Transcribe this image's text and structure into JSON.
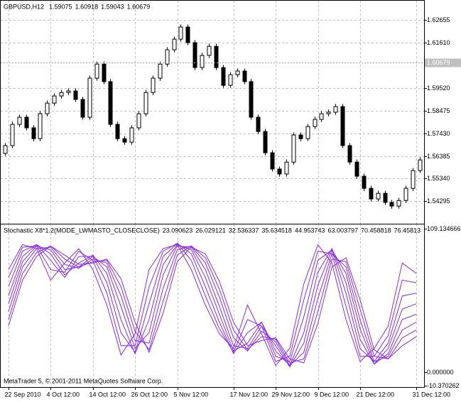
{
  "chart_data": [
    {
      "type": "candlestick",
      "symbol": "GBPUSD,H12",
      "header_values": [
        1.59075,
        1.60918,
        1.59043,
        1.60679
      ],
      "ylim": [
        1.5329,
        1.6351
      ],
      "yticks": [
        1.62655,
        {
          "value": 1.6161,
          "label": "1.61610"
        },
        {
          "value": 1.5952,
          "label": "1.59520"
        },
        1.58475,
        {
          "value": 1.5743,
          "label": "1.57430"
        },
        1.56385,
        {
          "value": 1.5534,
          "label": "1.55340"
        },
        1.54295
      ],
      "grid": true,
      "color": "#000000",
      "open": [
        1.565,
        1.5686,
        1.5784,
        1.5817,
        1.5768,
        1.5718,
        1.5833,
        1.5882,
        1.5915,
        1.5931,
        1.5938,
        1.5899,
        1.5817,
        1.5997,
        1.6062,
        1.5981,
        1.5784,
        1.5718,
        1.5702,
        1.5768,
        1.5833,
        1.5931,
        1.5997,
        1.6062,
        1.6128,
        1.6177,
        1.6233,
        1.6161,
        1.6046,
        1.6102,
        1.6144,
        1.6046,
        1.5964,
        1.6013,
        1.603,
        1.5981,
        1.5817,
        1.5751,
        1.5653,
        1.5578,
        1.5555,
        1.561,
        1.5735,
        1.5718,
        1.5774,
        1.5807,
        1.5833,
        1.584,
        1.5866,
        1.5686,
        1.561,
        1.5545,
        1.5489,
        1.544,
        1.5466,
        1.5424,
        1.5407,
        1.5433,
        1.5489,
        1.5571
      ],
      "high": [
        1.5698,
        1.5796,
        1.5829,
        1.5829,
        1.578,
        1.5845,
        1.5894,
        1.5927,
        1.5943,
        1.595,
        1.595,
        1.5911,
        1.6009,
        1.6074,
        1.6074,
        1.5993,
        1.5796,
        1.573,
        1.578,
        1.5845,
        1.5943,
        1.6009,
        1.6074,
        1.614,
        1.6189,
        1.6245,
        1.6245,
        1.6173,
        1.6114,
        1.6156,
        1.6156,
        1.6058,
        1.6025,
        1.6042,
        1.6042,
        1.5993,
        1.5829,
        1.5763,
        1.5665,
        1.559,
        1.5622,
        1.5747,
        1.5747,
        1.5786,
        1.5819,
        1.5845,
        1.5852,
        1.5878,
        1.5878,
        1.5698,
        1.5622,
        1.5557,
        1.5501,
        1.5478,
        1.5478,
        1.5436,
        1.5445,
        1.5501,
        1.5583,
        1.5632
      ],
      "low": [
        1.5638,
        1.5674,
        1.5772,
        1.5756,
        1.5706,
        1.5706,
        1.5821,
        1.587,
        1.5903,
        1.5919,
        1.5887,
        1.5805,
        1.5805,
        1.5985,
        1.5969,
        1.5772,
        1.5706,
        1.569,
        1.569,
        1.5756,
        1.5821,
        1.5919,
        1.5985,
        1.605,
        1.6116,
        1.6165,
        1.6149,
        1.6034,
        1.6034,
        1.609,
        1.6034,
        1.5952,
        1.5952,
        1.6001,
        1.5969,
        1.5805,
        1.5739,
        1.5641,
        1.5566,
        1.5543,
        1.5543,
        1.5598,
        1.5706,
        1.5706,
        1.5762,
        1.5795,
        1.5821,
        1.5828,
        1.5674,
        1.5598,
        1.5533,
        1.5477,
        1.5428,
        1.5428,
        1.5412,
        1.5395,
        1.5395,
        1.5421,
        1.5477,
        1.5559
      ],
      "close": [
        1.5686,
        1.5784,
        1.5817,
        1.5768,
        1.5718,
        1.5833,
        1.5882,
        1.5915,
        1.5931,
        1.5938,
        1.5899,
        1.5817,
        1.5997,
        1.6062,
        1.5981,
        1.5784,
        1.5718,
        1.5702,
        1.5768,
        1.5833,
        1.5931,
        1.5997,
        1.6062,
        1.6128,
        1.6177,
        1.6233,
        1.6161,
        1.6046,
        1.6102,
        1.6144,
        1.6046,
        1.5964,
        1.6013,
        1.603,
        1.5981,
        1.5817,
        1.5751,
        1.5653,
        1.5578,
        1.5555,
        1.561,
        1.5735,
        1.5718,
        1.5774,
        1.5807,
        1.5833,
        1.584,
        1.5866,
        1.5686,
        1.561,
        1.5545,
        1.5489,
        1.544,
        1.5466,
        1.5424,
        1.5407,
        1.5433,
        1.5489,
        1.5571,
        1.562
      ]
    },
    {
      "type": "line",
      "title": "Stochastic X8*1.2(MODE_LWMASTO_CLOSECLOSE)",
      "title_values": [
        23.090623,
        26.029121,
        32.536337,
        35.634518,
        44.953743,
        63.003797,
        70.458818,
        76.45813
      ],
      "annotation": "MetaTrader 5, © 2001-2011 MetaQuotes Software Corp.",
      "ylim": [
        -10.370262,
        109.134666
      ],
      "yticks": [
        109.134666,
        {
          "value": 0,
          "label": "0.000000"
        },
        -10.370262
      ],
      "grid": true,
      "categories": [
        "22 Sep 2010",
        null,
        null,
        "4 Oct 12:00",
        null,
        null,
        "14 Oct 12:00",
        null,
        null,
        "26 Oct 12:00",
        null,
        null,
        "5 Nov 12:00",
        null,
        null,
        null,
        "17 Nov 12:00",
        null,
        null,
        "29 Nov 12:00",
        null,
        null,
        "9 Dec 12:00",
        null,
        null,
        "21 Dec 12:00",
        null,
        null,
        null,
        "31 Dec 12:00"
      ],
      "series": [
        {
          "color": "#8a2be2",
          "values": [
            78,
            97,
            94,
            70,
            83,
            94,
            78,
            51,
            13,
            29,
            78,
            94,
            97,
            78,
            51,
            29,
            18,
            51,
            29,
            5,
            18,
            67,
            97,
            83,
            40,
            8,
            18,
            35,
            83,
            75
          ]
        },
        {
          "color": "#8a2be2",
          "values": [
            72,
            95,
            96,
            78,
            76,
            92,
            85,
            60,
            20,
            20,
            65,
            92,
            98,
            85,
            58,
            33,
            15,
            40,
            35,
            8,
            12,
            55,
            92,
            90,
            50,
            12,
            12,
            28,
            70,
            68
          ]
        },
        {
          "color": "#8a2be2",
          "values": [
            65,
            92,
            97,
            85,
            72,
            88,
            88,
            68,
            30,
            15,
            52,
            88,
            98,
            90,
            65,
            38,
            14,
            30,
            38,
            12,
            8,
            42,
            85,
            93,
            60,
            18,
            8,
            22,
            58,
            60
          ]
        },
        {
          "color": "#8a2be2",
          "values": [
            58,
            88,
            97,
            90,
            74,
            83,
            89,
            75,
            40,
            14,
            40,
            82,
            97,
            93,
            72,
            44,
            16,
            22,
            38,
            16,
            5,
            30,
            76,
            94,
            68,
            25,
            6,
            18,
            48,
            52
          ]
        },
        {
          "color": "#8a2be2",
          "values": [
            52,
            84,
            96,
            93,
            78,
            80,
            88,
            80,
            50,
            18,
            30,
            74,
            96,
            95,
            78,
            50,
            20,
            18,
            35,
            20,
            4,
            22,
            66,
            93,
            75,
            33,
            6,
            14,
            40,
            44
          ]
        },
        {
          "color": "#8a2be2",
          "values": [
            46,
            80,
            94,
            95,
            82,
            79,
            86,
            83,
            58,
            24,
            22,
            64,
            93,
            96,
            83,
            57,
            26,
            16,
            31,
            23,
            5,
            15,
            56,
            90,
            80,
            40,
            8,
            12,
            32,
            38
          ]
        },
        {
          "color": "#8a2be2",
          "values": [
            40,
            75,
            91,
            96,
            86,
            80,
            84,
            85,
            65,
            31,
            17,
            54,
            89,
            96,
            87,
            63,
            32,
            17,
            27,
            25,
            7,
            10,
            46,
            86,
            84,
            48,
            12,
            10,
            26,
            32
          ]
        },
        {
          "color": "#8a2be2",
          "values": [
            35,
            70,
            88,
            96,
            89,
            82,
            83,
            86,
            71,
            38,
            15,
            45,
            84,
            95,
            90,
            69,
            38,
            20,
            24,
            26,
            10,
            7,
            37,
            80,
            87,
            55,
            17,
            10,
            20,
            27
          ]
        }
      ]
    }
  ]
}
